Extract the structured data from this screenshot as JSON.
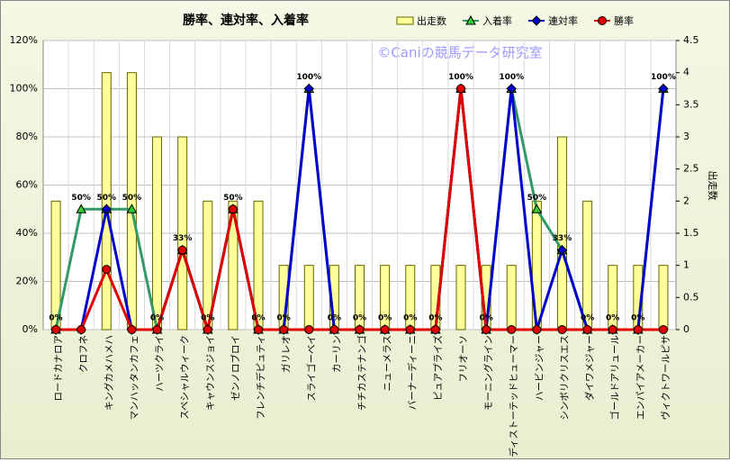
{
  "chart_data": {
    "type": "bar-line",
    "title": "勝率、連対率、入着率",
    "annotation": "©Caniの競馬データ研究室",
    "y2label": "出走数",
    "categories": [
      "ロードカナロア",
      "クロフネ",
      "キングカメハメハ",
      "マンハッタンカフェ",
      "ハーツクライ",
      "スペシャルウィーク",
      "キャウンスジョイ",
      "ゼンノロブロイ",
      "フレンチデピュティ",
      "ガリレオ",
      "スライゴーベイ",
      "カーリン",
      "チチカステナンゴ",
      "ニューメラス",
      "バーナーディーニ",
      "ピュアプライズ",
      "フリオーソ",
      "モーニングライン",
      "ディストーテッドヒューマー",
      "ハービンジャー",
      "シンボリクリスエス",
      "ダイワメジャー",
      "ゴールドアリュール",
      "エンパイアメーカー",
      "ヴィクトワールピサ"
    ],
    "series": [
      {
        "name": "出走数",
        "color": "#ffff99",
        "axis": "y2",
        "values": [
          2,
          0,
          4,
          4,
          3,
          3,
          2,
          2,
          2,
          1,
          1,
          1,
          1,
          1,
          1,
          1,
          1,
          1,
          1,
          2,
          3,
          2,
          1,
          1,
          1
        ]
      },
      {
        "name": "入着率",
        "color": "#339966",
        "values": [
          0,
          50,
          50,
          50,
          0,
          33,
          0,
          50,
          0,
          0,
          100,
          0,
          0,
          0,
          0,
          0,
          100,
          0,
          100,
          50,
          33,
          0,
          0,
          0,
          100
        ],
        "value_labels": [
          "0%",
          "50%",
          "50%",
          "50%",
          "0%",
          "33%",
          "0%",
          "50%",
          "0%",
          "0%",
          "100%",
          "0%",
          "0%",
          "0%",
          "0%",
          "0%",
          "100%",
          "0%",
          "100%",
          "50%",
          "33%",
          "0%",
          "0%",
          "0%",
          "100%"
        ]
      },
      {
        "name": "連対率",
        "color": "#0000cc",
        "values": [
          0,
          0,
          50,
          0,
          0,
          33,
          0,
          50,
          0,
          0,
          100,
          0,
          0,
          0,
          0,
          0,
          100,
          0,
          100,
          0,
          33,
          0,
          0,
          0,
          100
        ]
      },
      {
        "name": "勝率",
        "color": "#e00000",
        "values": [
          0,
          0,
          25,
          0,
          0,
          33,
          0,
          50,
          0,
          0,
          0,
          0,
          0,
          0,
          0,
          0,
          100,
          0,
          0,
          0,
          0,
          0,
          0,
          0,
          0
        ]
      }
    ],
    "ylim": [
      0,
      120
    ],
    "yticks": [
      {
        "value": 0,
        "label": "0%"
      },
      {
        "value": 20,
        "label": "20%"
      },
      {
        "value": 40,
        "label": "40%"
      },
      {
        "value": 60,
        "label": "60%"
      },
      {
        "value": 80,
        "label": "80%"
      },
      {
        "value": 100,
        "label": "100%"
      },
      {
        "value": 120,
        "label": "120%"
      }
    ],
    "y2lim": [
      0,
      4.5
    ],
    "y2ticks": [
      0,
      0.5,
      1,
      1.5,
      2,
      2.5,
      3,
      3.5,
      4,
      4.5
    ],
    "grid": true
  }
}
